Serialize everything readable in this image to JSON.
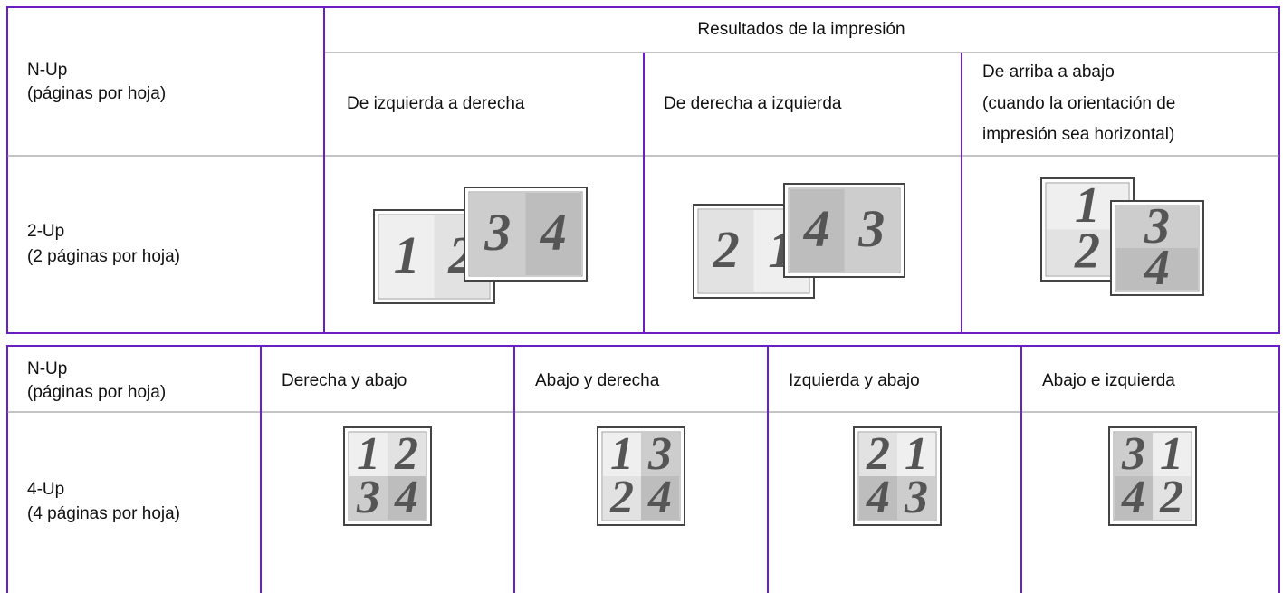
{
  "table1": {
    "header": {
      "label": [
        "N-Up",
        "(páginas por hoja)"
      ],
      "group": "Resultados de la impresión",
      "columns": [
        [
          "De izquierda a derecha"
        ],
        [
          "De derecha a izquierda"
        ],
        [
          "De arriba a abajo",
          "(cuando la orientación de",
          "impresión sea horizontal)"
        ]
      ]
    },
    "rows": [
      {
        "label": [
          "2-Up",
          "(2 páginas por hoja)"
        ],
        "cells": [
          {
            "sheets": [
              {
                "pages": [
                  "1",
                  "2"
                ]
              },
              {
                "pages": [
                  "3",
                  "4"
                ]
              }
            ]
          },
          {
            "sheets": [
              {
                "pages": [
                  "2",
                  "1"
                ]
              },
              {
                "pages": [
                  "4",
                  "3"
                ]
              }
            ]
          },
          {
            "sheets": [
              {
                "pages": [
                  "1",
                  "2"
                ]
              },
              {
                "pages": [
                  "3",
                  "4"
                ]
              }
            ]
          }
        ]
      }
    ]
  },
  "table2": {
    "header": {
      "label": [
        "N-Up",
        "(páginas por hoja)"
      ],
      "columns": [
        "Derecha y abajo",
        "Abajo y derecha",
        "Izquierda y abajo",
        "Abajo e izquierda"
      ]
    },
    "rows": [
      {
        "label": [
          "4-Up",
          "(4 páginas por hoja)"
        ],
        "cells": [
          {
            "sheets": [
              {
                "pages": [
                  "1",
                  "2",
                  "3",
                  "4"
                ]
              }
            ]
          },
          {
            "sheets": [
              {
                "pages": [
                  "1",
                  "3",
                  "2",
                  "4"
                ]
              }
            ]
          },
          {
            "sheets": [
              {
                "pages": [
                  "2",
                  "1",
                  "4",
                  "3"
                ]
              }
            ]
          },
          {
            "sheets": [
              {
                "pages": [
                  "3",
                  "1",
                  "4",
                  "2"
                ]
              }
            ]
          }
        ]
      }
    ]
  }
}
